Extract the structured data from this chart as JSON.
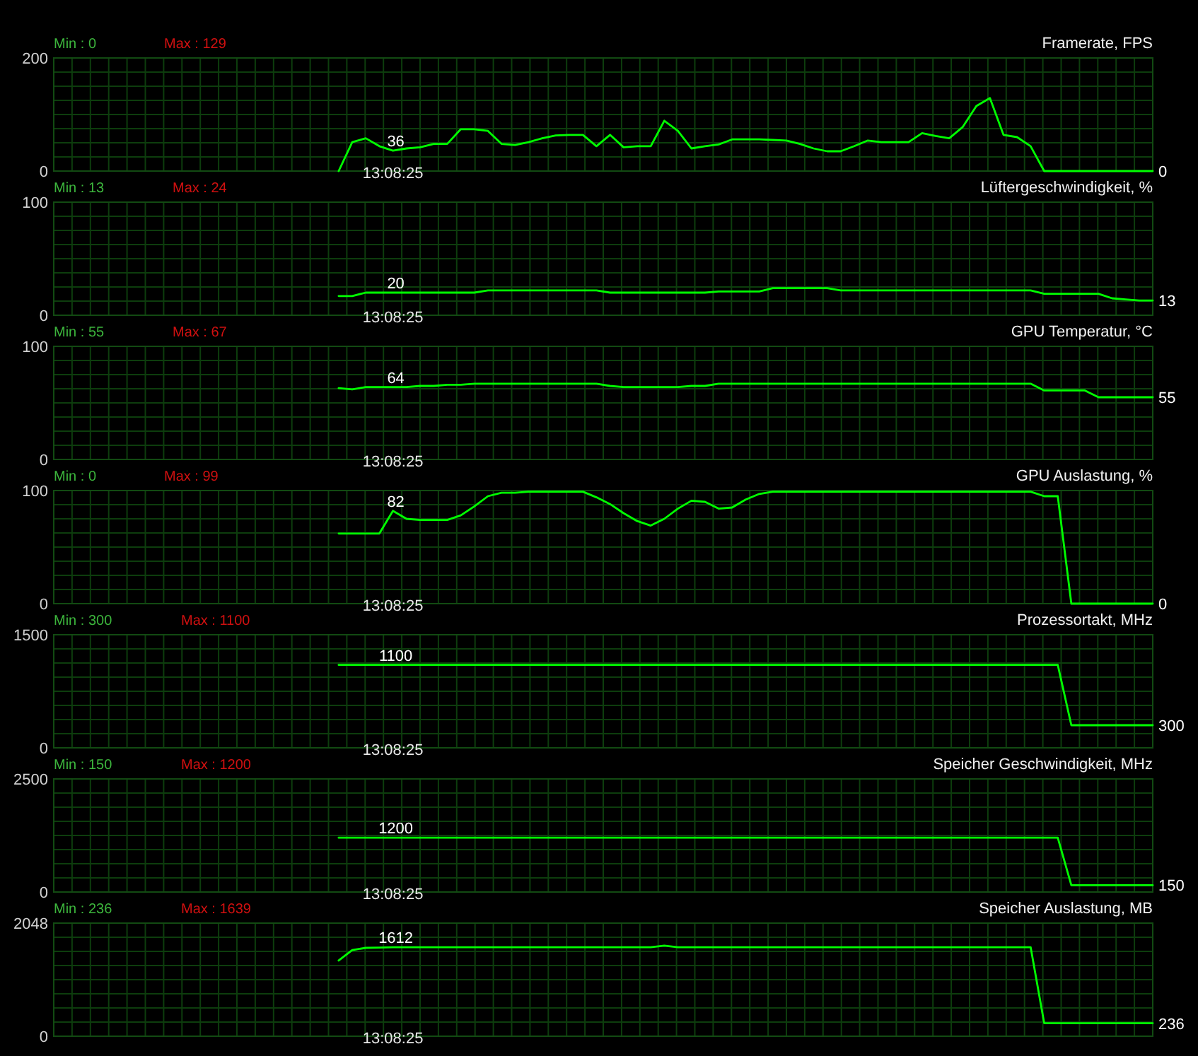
{
  "chart_data": [
    {
      "type": "line",
      "title": "Framerate, FPS",
      "categories": [
        null,
        null,
        null,
        null,
        null,
        null,
        null,
        null,
        null,
        null,
        null,
        null,
        null,
        null,
        null,
        null,
        null,
        null,
        null,
        null,
        null,
        null,
        null,
        null,
        null,
        null,
        null,
        null,
        null,
        null,
        null,
        null,
        null,
        null,
        null,
        null,
        null,
        null,
        null,
        null,
        null,
        null,
        null,
        null,
        null,
        null,
        null,
        null,
        null,
        null,
        null,
        null,
        null,
        null,
        null,
        null,
        null,
        null,
        null,
        null,
        null,
        null,
        null,
        null,
        null,
        null,
        null,
        null,
        null,
        null,
        null,
        null,
        null,
        null,
        null,
        null,
        null,
        null,
        null,
        null,
        null,
        null
      ],
      "series": [
        {
          "color": "#00ff00",
          "values": [
            null,
            null,
            null,
            null,
            null,
            null,
            null,
            null,
            null,
            null,
            null,
            null,
            null,
            null,
            null,
            null,
            null,
            null,
            null,
            null,
            null,
            0,
            51,
            58,
            44,
            36,
            40,
            42,
            48,
            48,
            74,
            74,
            71,
            48,
            46,
            51,
            58,
            63,
            64,
            64,
            44,
            64,
            42,
            44,
            44,
            89,
            71,
            40,
            44,
            47,
            56,
            56,
            56,
            55,
            54,
            48,
            40,
            35,
            35,
            44,
            54,
            51,
            51,
            51,
            67,
            62,
            58,
            78,
            115,
            129,
            64,
            60,
            44,
            0,
            0,
            0,
            0,
            0,
            0,
            0,
            0,
            0
          ],
          "value_labels": [
            null,
            null,
            null,
            null,
            null,
            null,
            null,
            null,
            null,
            null,
            null,
            null,
            null,
            null,
            null,
            null,
            null,
            null,
            null,
            null,
            null,
            null,
            null,
            null,
            null,
            "36",
            null,
            null,
            null,
            null,
            null,
            null,
            null,
            null,
            null,
            null,
            null,
            null,
            null,
            null,
            null,
            null,
            null,
            null,
            null,
            null,
            null,
            null,
            null,
            null,
            null,
            null,
            null,
            null,
            null,
            null,
            null,
            null,
            null,
            null,
            null,
            null,
            null,
            null,
            null,
            null,
            null,
            null,
            null,
            null,
            null,
            null,
            null,
            null,
            null,
            null,
            null,
            null,
            null,
            null,
            null,
            "0"
          ]
        }
      ],
      "ylim": [
        0,
        200
      ],
      "yticks": [
        0,
        200
      ],
      "tick_labels": "y",
      "grid": true,
      "annotations": [
        "Min : 0",
        "Max : 129",
        "13:08:25"
      ]
    },
    {
      "type": "line",
      "title": "Lüftergeschwindigkeit, %",
      "categories": [
        null,
        null,
        null,
        null,
        null,
        null,
        null,
        null,
        null,
        null,
        null,
        null,
        null,
        null,
        null,
        null,
        null,
        null,
        null,
        null,
        null,
        null,
        null,
        null,
        null,
        null,
        null,
        null,
        null,
        null,
        null,
        null,
        null,
        null,
        null,
        null,
        null,
        null,
        null,
        null,
        null,
        null,
        null,
        null,
        null,
        null,
        null,
        null,
        null,
        null,
        null,
        null,
        null,
        null,
        null,
        null,
        null,
        null,
        null,
        null,
        null,
        null,
        null,
        null,
        null,
        null,
        null,
        null,
        null,
        null,
        null,
        null,
        null,
        null,
        null,
        null,
        null,
        null,
        null,
        null,
        null,
        null
      ],
      "series": [
        {
          "color": "#00ff00",
          "values": [
            null,
            null,
            null,
            null,
            null,
            null,
            null,
            null,
            null,
            null,
            null,
            null,
            null,
            null,
            null,
            null,
            null,
            null,
            null,
            null,
            null,
            17,
            17,
            20,
            20,
            20,
            20,
            20,
            20,
            20,
            20,
            20,
            22,
            22,
            22,
            22,
            22,
            22,
            22,
            22,
            22,
            20,
            20,
            20,
            20,
            20,
            20,
            20,
            20,
            21,
            21,
            21,
            21,
            24,
            24,
            24,
            24,
            24,
            22,
            22,
            22,
            22,
            22,
            22,
            22,
            22,
            22,
            22,
            22,
            22,
            22,
            22,
            22,
            19,
            19,
            19,
            19,
            19,
            15,
            14,
            13,
            13
          ],
          "value_labels": [
            null,
            null,
            null,
            null,
            null,
            null,
            null,
            null,
            null,
            null,
            null,
            null,
            null,
            null,
            null,
            null,
            null,
            null,
            null,
            null,
            null,
            null,
            null,
            null,
            null,
            "20",
            null,
            null,
            null,
            null,
            null,
            null,
            null,
            null,
            null,
            null,
            null,
            null,
            null,
            null,
            null,
            null,
            null,
            null,
            null,
            null,
            null,
            null,
            null,
            null,
            null,
            null,
            null,
            null,
            null,
            null,
            null,
            null,
            null,
            null,
            null,
            null,
            null,
            null,
            null,
            null,
            null,
            null,
            null,
            null,
            null,
            null,
            null,
            null,
            null,
            null,
            null,
            null,
            null,
            null,
            null,
            "13"
          ]
        }
      ],
      "ylim": [
        0,
        100
      ],
      "yticks": [
        0,
        100
      ],
      "tick_labels": "y",
      "grid": true,
      "annotations": [
        "Min : 13",
        "Max : 24",
        "13:08:25"
      ]
    },
    {
      "type": "line",
      "title": "GPU Temperatur, °C",
      "categories": [
        null,
        null,
        null,
        null,
        null,
        null,
        null,
        null,
        null,
        null,
        null,
        null,
        null,
        null,
        null,
        null,
        null,
        null,
        null,
        null,
        null,
        null,
        null,
        null,
        null,
        null,
        null,
        null,
        null,
        null,
        null,
        null,
        null,
        null,
        null,
        null,
        null,
        null,
        null,
        null,
        null,
        null,
        null,
        null,
        null,
        null,
        null,
        null,
        null,
        null,
        null,
        null,
        null,
        null,
        null,
        null,
        null,
        null,
        null,
        null,
        null,
        null,
        null,
        null,
        null,
        null,
        null,
        null,
        null,
        null,
        null,
        null,
        null,
        null,
        null,
        null,
        null,
        null,
        null,
        null,
        null,
        null
      ],
      "series": [
        {
          "color": "#00ff00",
          "values": [
            null,
            null,
            null,
            null,
            null,
            null,
            null,
            null,
            null,
            null,
            null,
            null,
            null,
            null,
            null,
            null,
            null,
            null,
            null,
            null,
            null,
            63,
            62,
            64,
            64,
            64,
            64,
            65,
            65,
            66,
            66,
            67,
            67,
            67,
            67,
            67,
            67,
            67,
            67,
            67,
            67,
            65,
            64,
            64,
            64,
            64,
            64,
            65,
            65,
            67,
            67,
            67,
            67,
            67,
            67,
            67,
            67,
            67,
            67,
            67,
            67,
            67,
            67,
            67,
            67,
            67,
            67,
            67,
            67,
            67,
            67,
            67,
            67,
            61,
            61,
            61,
            61,
            55,
            55,
            55,
            55,
            55
          ],
          "value_labels": [
            null,
            null,
            null,
            null,
            null,
            null,
            null,
            null,
            null,
            null,
            null,
            null,
            null,
            null,
            null,
            null,
            null,
            null,
            null,
            null,
            null,
            null,
            null,
            null,
            null,
            "64",
            null,
            null,
            null,
            null,
            null,
            null,
            null,
            null,
            null,
            null,
            null,
            null,
            null,
            null,
            null,
            null,
            null,
            null,
            null,
            null,
            null,
            null,
            null,
            null,
            null,
            null,
            null,
            null,
            null,
            null,
            null,
            null,
            null,
            null,
            null,
            null,
            null,
            null,
            null,
            null,
            null,
            null,
            null,
            null,
            null,
            null,
            null,
            null,
            null,
            null,
            null,
            null,
            null,
            null,
            null,
            "55"
          ]
        }
      ],
      "ylim": [
        0,
        100
      ],
      "yticks": [
        0,
        100
      ],
      "tick_labels": "y",
      "grid": true,
      "annotations": [
        "Min : 55",
        "Max : 67",
        "13:08:25"
      ]
    },
    {
      "type": "line",
      "title": "GPU Auslastung, %",
      "categories": [
        null,
        null,
        null,
        null,
        null,
        null,
        null,
        null,
        null,
        null,
        null,
        null,
        null,
        null,
        null,
        null,
        null,
        null,
        null,
        null,
        null,
        null,
        null,
        null,
        null,
        null,
        null,
        null,
        null,
        null,
        null,
        null,
        null,
        null,
        null,
        null,
        null,
        null,
        null,
        null,
        null,
        null,
        null,
        null,
        null,
        null,
        null,
        null,
        null,
        null,
        null,
        null,
        null,
        null,
        null,
        null,
        null,
        null,
        null,
        null,
        null,
        null,
        null,
        null,
        null,
        null,
        null,
        null,
        null,
        null,
        null,
        null,
        null,
        null,
        null,
        null,
        null,
        null,
        null,
        null,
        null,
        null
      ],
      "series": [
        {
          "color": "#00ff00",
          "values": [
            null,
            null,
            null,
            null,
            null,
            null,
            null,
            null,
            null,
            null,
            null,
            null,
            null,
            null,
            null,
            null,
            null,
            null,
            null,
            null,
            null,
            62,
            62,
            62,
            62,
            82,
            75,
            74,
            74,
            74,
            78,
            86,
            95,
            98,
            98,
            99,
            99,
            99,
            99,
            99,
            94,
            88,
            80,
            73,
            69,
            75,
            84,
            91,
            90,
            84,
            85,
            92,
            97,
            99,
            99,
            99,
            99,
            99,
            99,
            99,
            99,
            99,
            99,
            99,
            99,
            99,
            99,
            99,
            99,
            99,
            99,
            99,
            99,
            95,
            95,
            0,
            0,
            0,
            0,
            0,
            0,
            0
          ],
          "value_labels": [
            null,
            null,
            null,
            null,
            null,
            null,
            null,
            null,
            null,
            null,
            null,
            null,
            null,
            null,
            null,
            null,
            null,
            null,
            null,
            null,
            null,
            null,
            null,
            null,
            null,
            "82",
            null,
            null,
            null,
            null,
            null,
            null,
            null,
            null,
            null,
            null,
            null,
            null,
            null,
            null,
            null,
            null,
            null,
            null,
            null,
            null,
            null,
            null,
            null,
            null,
            null,
            null,
            null,
            null,
            null,
            null,
            null,
            null,
            null,
            null,
            null,
            null,
            null,
            null,
            null,
            null,
            null,
            null,
            null,
            null,
            null,
            null,
            null,
            null,
            null,
            null,
            null,
            null,
            null,
            null,
            null,
            "0"
          ]
        }
      ],
      "ylim": [
        0,
        100
      ],
      "yticks": [
        0,
        100
      ],
      "tick_labels": "y",
      "grid": true,
      "annotations": [
        "Min : 0",
        "Max : 99",
        "13:08:25"
      ]
    },
    {
      "type": "line",
      "title": "Prozessortakt, MHz",
      "categories": [
        null,
        null,
        null,
        null,
        null,
        null,
        null,
        null,
        null,
        null,
        null,
        null,
        null,
        null,
        null,
        null,
        null,
        null,
        null,
        null,
        null,
        null,
        null,
        null,
        null,
        null,
        null,
        null,
        null,
        null,
        null,
        null,
        null,
        null,
        null,
        null,
        null,
        null,
        null,
        null,
        null,
        null,
        null,
        null,
        null,
        null,
        null,
        null,
        null,
        null,
        null,
        null,
        null,
        null,
        null,
        null,
        null,
        null,
        null,
        null,
        null,
        null,
        null,
        null,
        null,
        null,
        null,
        null,
        null,
        null,
        null,
        null,
        null,
        null,
        null,
        null,
        null,
        null,
        null,
        null,
        null,
        null
      ],
      "series": [
        {
          "color": "#00ff00",
          "values": [
            null,
            null,
            null,
            null,
            null,
            null,
            null,
            null,
            null,
            null,
            null,
            null,
            null,
            null,
            null,
            null,
            null,
            null,
            null,
            null,
            null,
            1100,
            1100,
            1100,
            1100,
            1100,
            1100,
            1100,
            1100,
            1100,
            1100,
            1100,
            1100,
            1100,
            1100,
            1100,
            1100,
            1100,
            1100,
            1100,
            1100,
            1100,
            1100,
            1100,
            1100,
            1100,
            1100,
            1100,
            1100,
            1100,
            1100,
            1100,
            1100,
            1100,
            1100,
            1100,
            1100,
            1100,
            1100,
            1100,
            1100,
            1100,
            1100,
            1100,
            1100,
            1100,
            1100,
            1100,
            1100,
            1100,
            1100,
            1100,
            1100,
            1100,
            1100,
            300,
            300,
            300,
            300,
            300,
            300,
            300
          ],
          "value_labels": [
            null,
            null,
            null,
            null,
            null,
            null,
            null,
            null,
            null,
            null,
            null,
            null,
            null,
            null,
            null,
            null,
            null,
            null,
            null,
            null,
            null,
            null,
            null,
            null,
            null,
            "1100",
            null,
            null,
            null,
            null,
            null,
            null,
            null,
            null,
            null,
            null,
            null,
            null,
            null,
            null,
            null,
            null,
            null,
            null,
            null,
            null,
            null,
            null,
            null,
            null,
            null,
            null,
            null,
            null,
            null,
            null,
            null,
            null,
            null,
            null,
            null,
            null,
            null,
            null,
            null,
            null,
            null,
            null,
            null,
            null,
            null,
            null,
            null,
            null,
            null,
            null,
            null,
            null,
            null,
            null,
            null,
            "300"
          ]
        }
      ],
      "ylim": [
        0,
        1500
      ],
      "yticks": [
        0,
        1500
      ],
      "tick_labels": "y",
      "grid": true,
      "annotations": [
        "Min : 300",
        "Max : 1100",
        "13:08:25"
      ]
    },
    {
      "type": "line",
      "title": "Speicher Geschwindigkeit, MHz",
      "categories": [
        null,
        null,
        null,
        null,
        null,
        null,
        null,
        null,
        null,
        null,
        null,
        null,
        null,
        null,
        null,
        null,
        null,
        null,
        null,
        null,
        null,
        null,
        null,
        null,
        null,
        null,
        null,
        null,
        null,
        null,
        null,
        null,
        null,
        null,
        null,
        null,
        null,
        null,
        null,
        null,
        null,
        null,
        null,
        null,
        null,
        null,
        null,
        null,
        null,
        null,
        null,
        null,
        null,
        null,
        null,
        null,
        null,
        null,
        null,
        null,
        null,
        null,
        null,
        null,
        null,
        null,
        null,
        null,
        null,
        null,
        null,
        null,
        null,
        null,
        null,
        null,
        null,
        null,
        null,
        null,
        null,
        null
      ],
      "series": [
        {
          "color": "#00ff00",
          "values": [
            null,
            null,
            null,
            null,
            null,
            null,
            null,
            null,
            null,
            null,
            null,
            null,
            null,
            null,
            null,
            null,
            null,
            null,
            null,
            null,
            null,
            1200,
            1200,
            1200,
            1200,
            1200,
            1200,
            1200,
            1200,
            1200,
            1200,
            1200,
            1200,
            1200,
            1200,
            1200,
            1200,
            1200,
            1200,
            1200,
            1200,
            1200,
            1200,
            1200,
            1200,
            1200,
            1200,
            1200,
            1200,
            1200,
            1200,
            1200,
            1200,
            1200,
            1200,
            1200,
            1200,
            1200,
            1200,
            1200,
            1200,
            1200,
            1200,
            1200,
            1200,
            1200,
            1200,
            1200,
            1200,
            1200,
            1200,
            1200,
            1200,
            1200,
            1200,
            150,
            150,
            150,
            150,
            150,
            150,
            150
          ],
          "value_labels": [
            null,
            null,
            null,
            null,
            null,
            null,
            null,
            null,
            null,
            null,
            null,
            null,
            null,
            null,
            null,
            null,
            null,
            null,
            null,
            null,
            null,
            null,
            null,
            null,
            null,
            "1200",
            null,
            null,
            null,
            null,
            null,
            null,
            null,
            null,
            null,
            null,
            null,
            null,
            null,
            null,
            null,
            null,
            null,
            null,
            null,
            null,
            null,
            null,
            null,
            null,
            null,
            null,
            null,
            null,
            null,
            null,
            null,
            null,
            null,
            null,
            null,
            null,
            null,
            null,
            null,
            null,
            null,
            null,
            null,
            null,
            null,
            null,
            null,
            null,
            null,
            null,
            null,
            null,
            null,
            null,
            null,
            "150"
          ]
        }
      ],
      "ylim": [
        0,
        2500
      ],
      "yticks": [
        0,
        2500
      ],
      "tick_labels": "y",
      "grid": true,
      "annotations": [
        "Min : 150",
        "Max : 1200",
        "13:08:25"
      ]
    },
    {
      "type": "line",
      "title": "Speicher Auslastung, MB",
      "categories": [
        null,
        null,
        null,
        null,
        null,
        null,
        null,
        null,
        null,
        null,
        null,
        null,
        null,
        null,
        null,
        null,
        null,
        null,
        null,
        null,
        null,
        null,
        null,
        null,
        null,
        null,
        null,
        null,
        null,
        null,
        null,
        null,
        null,
        null,
        null,
        null,
        null,
        null,
        null,
        null,
        null,
        null,
        null,
        null,
        null,
        null,
        null,
        null,
        null,
        null,
        null,
        null,
        null,
        null,
        null,
        null,
        null,
        null,
        null,
        null,
        null,
        null,
        null,
        null,
        null,
        null,
        null,
        null,
        null,
        null,
        null,
        null,
        null,
        null,
        null,
        null,
        null,
        null,
        null,
        null,
        null,
        null
      ],
      "series": [
        {
          "color": "#00ff00",
          "values": [
            null,
            null,
            null,
            null,
            null,
            null,
            null,
            null,
            null,
            null,
            null,
            null,
            null,
            null,
            null,
            null,
            null,
            null,
            null,
            null,
            null,
            1370,
            1560,
            1600,
            1605,
            1612,
            1612,
            1612,
            1612,
            1612,
            1612,
            1612,
            1612,
            1612,
            1612,
            1612,
            1612,
            1612,
            1612,
            1612,
            1612,
            1612,
            1612,
            1612,
            1612,
            1639,
            1612,
            1612,
            1612,
            1612,
            1612,
            1612,
            1612,
            1612,
            1612,
            1612,
            1612,
            1612,
            1612,
            1612,
            1612,
            1612,
            1612,
            1612,
            1612,
            1612,
            1612,
            1612,
            1612,
            1612,
            1612,
            1612,
            1612,
            236,
            236,
            236,
            236,
            236,
            236,
            236,
            236,
            236
          ],
          "value_labels": [
            null,
            null,
            null,
            null,
            null,
            null,
            null,
            null,
            null,
            null,
            null,
            null,
            null,
            null,
            null,
            null,
            null,
            null,
            null,
            null,
            null,
            null,
            null,
            null,
            null,
            "1612",
            null,
            null,
            null,
            null,
            null,
            null,
            null,
            null,
            null,
            null,
            null,
            null,
            null,
            null,
            null,
            null,
            null,
            null,
            null,
            null,
            null,
            null,
            null,
            null,
            null,
            null,
            null,
            null,
            null,
            null,
            null,
            null,
            null,
            null,
            null,
            null,
            null,
            null,
            null,
            null,
            null,
            null,
            null,
            null,
            null,
            null,
            null,
            null,
            null,
            null,
            null,
            null,
            null,
            null,
            null,
            "236"
          ]
        }
      ],
      "ylim": [
        0,
        2048
      ],
      "yticks": [
        0,
        2048
      ],
      "tick_labels": "y",
      "grid": true,
      "annotations": [
        "Min : 236",
        "Max : 1639",
        "13:08:25"
      ]
    }
  ]
}
